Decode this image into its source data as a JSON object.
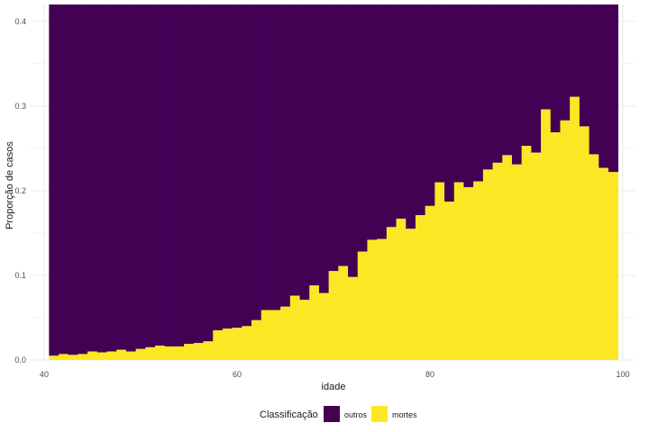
{
  "chart_data": {
    "type": "bar",
    "stacked": "fill",
    "xlabel": "idade",
    "ylabel": "Proporção de casos",
    "x_ticks": [
      40,
      60,
      80,
      100
    ],
    "y_ticks": [
      0.0,
      0.1,
      0.2,
      0.3,
      0.4
    ],
    "y_tick_labels": [
      "0.0",
      "0.1",
      "0.2",
      "0.3",
      "0.4"
    ],
    "xlim": [
      38.6,
      101.4
    ],
    "ylim": [
      0,
      0.42
    ],
    "grid": true,
    "legend": {
      "title": "Classificação",
      "position": "bottom",
      "entries": [
        {
          "label": "outros",
          "color": "#440154"
        },
        {
          "label": "mortes",
          "color": "#fde725"
        }
      ]
    },
    "series": [
      {
        "name": "outros",
        "color": "#440154",
        "values": "remainder to 1.0"
      },
      {
        "name": "mortes",
        "color": "#fde725"
      }
    ],
    "x": [
      41,
      42,
      43,
      44,
      45,
      46,
      47,
      48,
      49,
      50,
      51,
      52,
      53,
      54,
      55,
      56,
      57,
      58,
      59,
      60,
      61,
      62,
      63,
      64,
      65,
      66,
      67,
      68,
      69,
      70,
      71,
      72,
      73,
      74,
      75,
      76,
      77,
      78,
      79,
      80,
      81,
      82,
      83,
      84,
      85,
      86,
      87,
      88,
      89,
      90,
      91,
      92,
      93,
      94,
      95,
      96,
      97,
      98,
      99
    ],
    "mortes": [
      0.005,
      0.007,
      0.006,
      0.007,
      0.01,
      0.009,
      0.01,
      0.012,
      0.01,
      0.013,
      0.015,
      0.017,
      0.016,
      0.016,
      0.019,
      0.02,
      0.022,
      0.035,
      0.037,
      0.038,
      0.04,
      0.047,
      0.059,
      0.059,
      0.063,
      0.076,
      0.071,
      0.088,
      0.079,
      0.105,
      0.111,
      0.098,
      0.128,
      0.142,
      0.143,
      0.157,
      0.167,
      0.155,
      0.171,
      0.182,
      0.21,
      0.187,
      0.21,
      0.204,
      0.211,
      0.225,
      0.233,
      0.242,
      0.231,
      0.253,
      0.245,
      0.296,
      0.269,
      0.283,
      0.311,
      0.276,
      0.243,
      0.227,
      0.222
    ]
  }
}
